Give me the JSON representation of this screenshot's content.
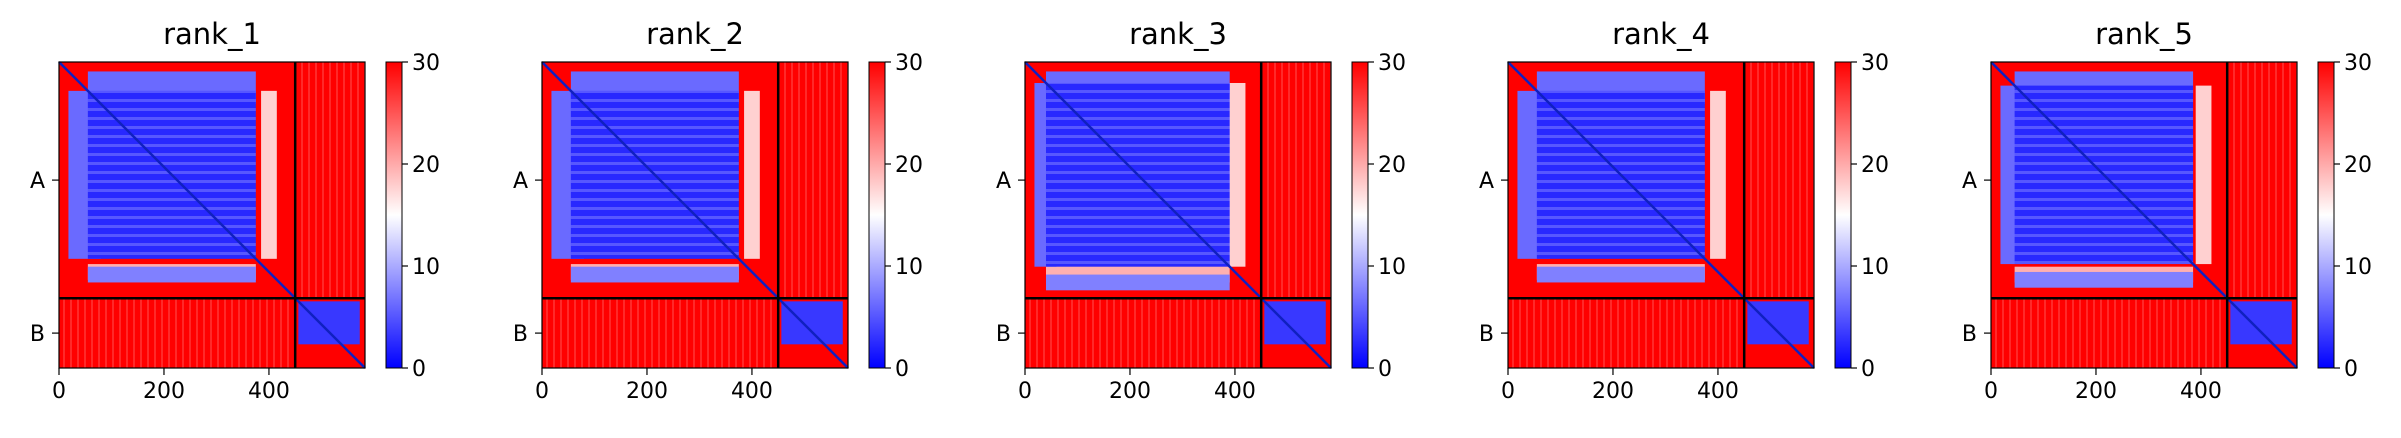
{
  "chart_data": [
    {
      "type": "heatmap",
      "title": "rank_1",
      "x_ticks": [
        0,
        200,
        400
      ],
      "x_range": [
        0,
        583
      ],
      "y_tick_labels": [
        "A",
        "B"
      ],
      "colorbar_ticks": [
        0,
        10,
        20,
        30
      ],
      "colorbar_range": [
        0,
        30
      ],
      "colormap": "bwr",
      "chains": [
        {
          "name": "A",
          "start": 0,
          "end": 450
        },
        {
          "name": "B",
          "start": 450,
          "end": 583
        }
      ],
      "features": {
        "core": [
          55,
          375
        ],
        "band": [
          385,
          415
        ],
        "strips": [
          18,
          80
        ]
      }
    },
    {
      "type": "heatmap",
      "title": "rank_2",
      "x_ticks": [
        0,
        200,
        400
      ],
      "x_range": [
        0,
        583
      ],
      "y_tick_labels": [
        "A",
        "B"
      ],
      "colorbar_ticks": [
        0,
        10,
        20,
        30
      ],
      "colorbar_range": [
        0,
        30
      ],
      "colormap": "bwr",
      "chains": [
        {
          "name": "A",
          "start": 0,
          "end": 450
        },
        {
          "name": "B",
          "start": 450,
          "end": 583
        }
      ],
      "features": {
        "core": [
          55,
          375
        ],
        "band": [
          385,
          415
        ],
        "strips": [
          18,
          80
        ]
      }
    },
    {
      "type": "heatmap",
      "title": "rank_3",
      "x_ticks": [
        0,
        200,
        400
      ],
      "x_range": [
        0,
        583
      ],
      "y_tick_labels": [
        "A",
        "B"
      ],
      "colorbar_ticks": [
        0,
        10,
        20,
        30
      ],
      "colorbar_range": [
        0,
        30
      ],
      "colormap": "bwr",
      "chains": [
        {
          "name": "A",
          "start": 0,
          "end": 450
        },
        {
          "name": "B",
          "start": 450,
          "end": 583
        }
      ],
      "features": {
        "core": [
          40,
          390
        ],
        "band": [
          385,
          420
        ],
        "strips": [
          18,
          60
        ]
      }
    },
    {
      "type": "heatmap",
      "title": "rank_4",
      "x_ticks": [
        0,
        200,
        400
      ],
      "x_range": [
        0,
        583
      ],
      "y_tick_labels": [
        "A",
        "B"
      ],
      "colorbar_ticks": [
        0,
        10,
        20,
        30
      ],
      "colorbar_range": [
        0,
        30
      ],
      "colormap": "bwr",
      "chains": [
        {
          "name": "A",
          "start": 0,
          "end": 450
        },
        {
          "name": "B",
          "start": 450,
          "end": 583
        }
      ],
      "features": {
        "core": [
          55,
          375
        ],
        "band": [
          385,
          415
        ],
        "strips": [
          18,
          80
        ]
      }
    },
    {
      "type": "heatmap",
      "title": "rank_5",
      "x_ticks": [
        0,
        200,
        400
      ],
      "x_range": [
        0,
        583
      ],
      "y_tick_labels": [
        "A",
        "B"
      ],
      "colorbar_ticks": [
        0,
        10,
        20,
        30
      ],
      "colorbar_range": [
        0,
        30
      ],
      "colormap": "bwr",
      "chains": [
        {
          "name": "A",
          "start": 0,
          "end": 450
        },
        {
          "name": "B",
          "start": 450,
          "end": 583
        }
      ],
      "features": {
        "core": [
          45,
          385
        ],
        "band": [
          390,
          420
        ],
        "strips": [
          18,
          60
        ]
      }
    }
  ],
  "colors": {
    "low": "#0000ff",
    "mid": "#ffffff",
    "high": "#ff0000",
    "line": "#000000"
  }
}
